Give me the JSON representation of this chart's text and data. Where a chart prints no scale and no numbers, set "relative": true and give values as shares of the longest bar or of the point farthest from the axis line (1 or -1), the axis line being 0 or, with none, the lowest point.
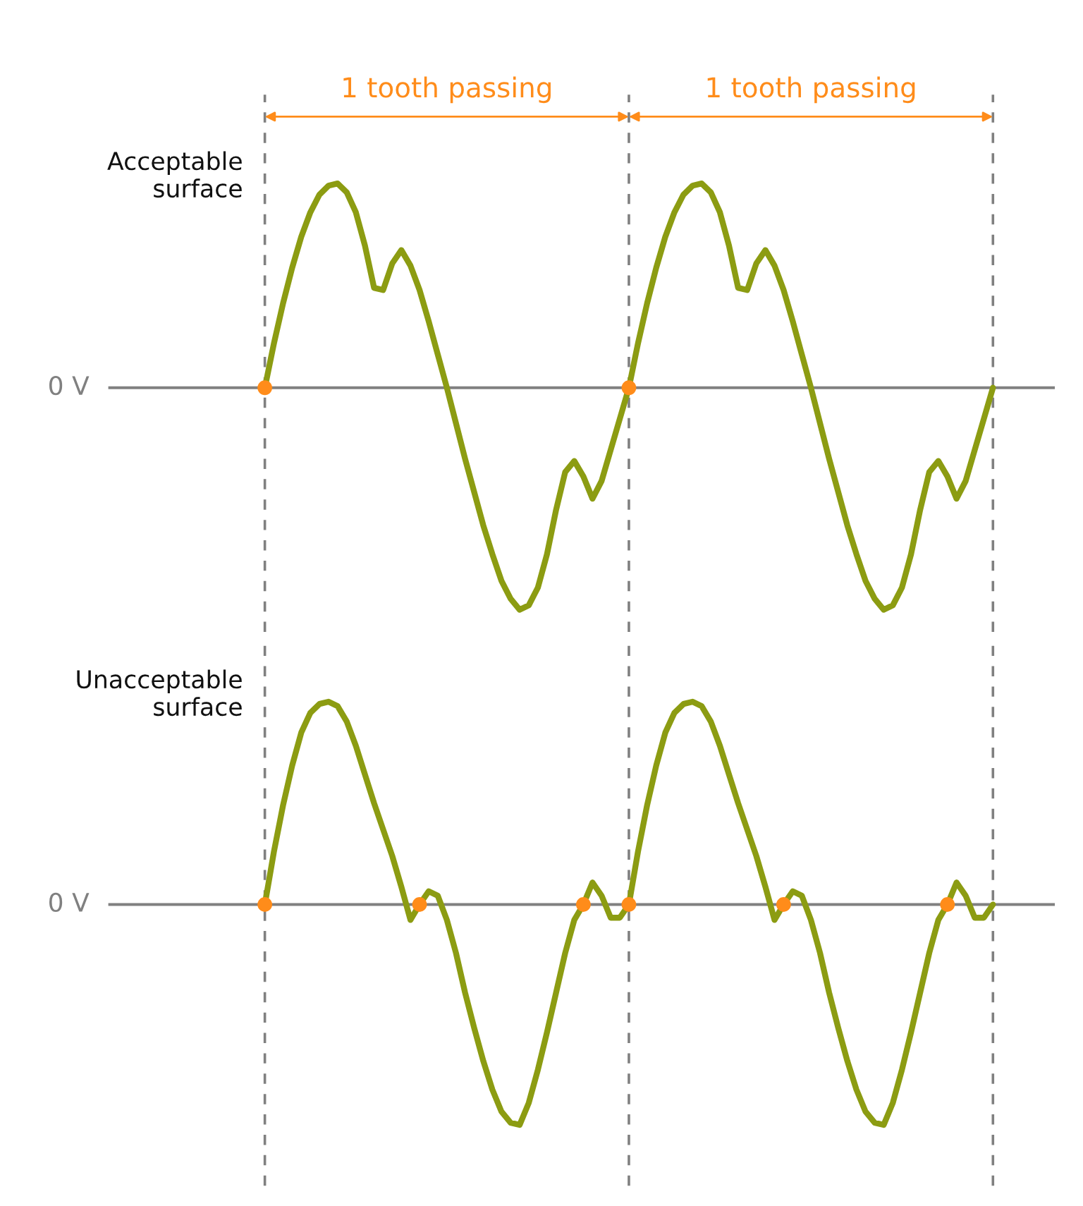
{
  "chart_data": [
    {
      "type": "line",
      "relative": true,
      "tick_labels": false,
      "grid": "x",
      "title": "Acceptable\nsurface",
      "categories": [
        null,
        null,
        null,
        null,
        null,
        null,
        null,
        null,
        null,
        null,
        null,
        null,
        null,
        null,
        null,
        null,
        null,
        null,
        null,
        null,
        null,
        null,
        null,
        null,
        null,
        null,
        null,
        null,
        null,
        null,
        null,
        null,
        null,
        null,
        null,
        null,
        null,
        null,
        null,
        null,
        null,
        null,
        null,
        null,
        null,
        null,
        null,
        null,
        null,
        null,
        null,
        null,
        null,
        null,
        null,
        null,
        null,
        null,
        null,
        null,
        null,
        null,
        null,
        null,
        null,
        null,
        null,
        null,
        null,
        null,
        null,
        null,
        null,
        null,
        null,
        null,
        null,
        null,
        null,
        null,
        null
      ],
      "annotations": [
        "1 tooth passing",
        "1 tooth passing"
      ],
      "ref_lines": [
        {
          "axis": "y",
          "value": 0,
          "label": "0 V",
          "color": "#808080",
          "line_style": "solid"
        }
      ],
      "series": [
        {
          "color": "#8c9c12",
          "values": [
            0,
            0.2,
            0.38,
            0.54,
            0.68,
            0.79,
            0.87,
            0.91,
            0.92,
            0.88,
            0.79,
            0.64,
            0.45,
            0.44,
            0.56,
            0.62,
            0.55,
            0.44,
            0.3,
            0.15,
            0,
            -0.16,
            -0.32,
            -0.47,
            -0.62,
            -0.75,
            -0.87,
            -0.95,
            -1,
            -0.98,
            -0.9,
            -0.75,
            -0.55,
            -0.38,
            -0.33,
            -0.4,
            -0.5,
            -0.42,
            -0.28,
            -0.14,
            0,
            0.2,
            0.38,
            0.54,
            0.68,
            0.79,
            0.87,
            0.91,
            0.92,
            0.88,
            0.79,
            0.64,
            0.45,
            0.44,
            0.56,
            0.62,
            0.55,
            0.44,
            0.3,
            0.15,
            0,
            -0.16,
            -0.32,
            -0.47,
            -0.62,
            -0.75,
            -0.87,
            -0.95,
            -1,
            -0.98,
            -0.9,
            -0.75,
            -0.55,
            -0.38,
            -0.33,
            -0.4,
            -0.5,
            -0.42,
            -0.28,
            -0.14,
            0
          ]
        }
      ]
    },
    {
      "type": "line",
      "relative": true,
      "tick_labels": false,
      "grid": "x",
      "title": "Unacceptable\nsurface",
      "categories": [
        null,
        null,
        null,
        null,
        null,
        null,
        null,
        null,
        null,
        null,
        null,
        null,
        null,
        null,
        null,
        null,
        null,
        null,
        null,
        null,
        null,
        null,
        null,
        null,
        null,
        null,
        null,
        null,
        null,
        null,
        null,
        null,
        null,
        null,
        null,
        null,
        null,
        null,
        null,
        null,
        null,
        null,
        null,
        null,
        null,
        null,
        null,
        null,
        null,
        null,
        null,
        null,
        null,
        null,
        null,
        null,
        null,
        null,
        null,
        null,
        null,
        null,
        null,
        null,
        null,
        null,
        null,
        null,
        null,
        null,
        null,
        null,
        null,
        null,
        null,
        null,
        null,
        null,
        null,
        null,
        null
      ],
      "ref_lines": [
        {
          "axis": "y",
          "value": 0,
          "label": "0 V",
          "color": "#808080",
          "line_style": "solid"
        }
      ],
      "series": [
        {
          "color": "#8c9c12",
          "values": [
            0,
            0.24,
            0.45,
            0.63,
            0.78,
            0.87,
            0.91,
            0.92,
            0.9,
            0.83,
            0.72,
            0.59,
            0.46,
            0.34,
            0.22,
            0.08,
            -0.07,
            0,
            0.06,
            0.04,
            -0.07,
            -0.22,
            -0.4,
            -0.56,
            -0.71,
            -0.84,
            -0.94,
            -0.99,
            -1,
            -0.9,
            -0.75,
            -0.58,
            -0.4,
            -0.22,
            -0.07,
            0,
            0.1,
            0.04,
            -0.06,
            -0.06,
            0,
            0.24,
            0.45,
            0.63,
            0.78,
            0.87,
            0.91,
            0.92,
            0.9,
            0.83,
            0.72,
            0.59,
            0.46,
            0.34,
            0.22,
            0.08,
            -0.07,
            0,
            0.06,
            0.04,
            -0.07,
            -0.22,
            -0.4,
            -0.56,
            -0.71,
            -0.84,
            -0.94,
            -0.99,
            -1,
            -0.9,
            -0.75,
            -0.58,
            -0.4,
            -0.22,
            -0.07,
            0,
            0.1,
            0.04,
            -0.06,
            -0.06,
            0
          ]
        }
      ]
    }
  ]
}
